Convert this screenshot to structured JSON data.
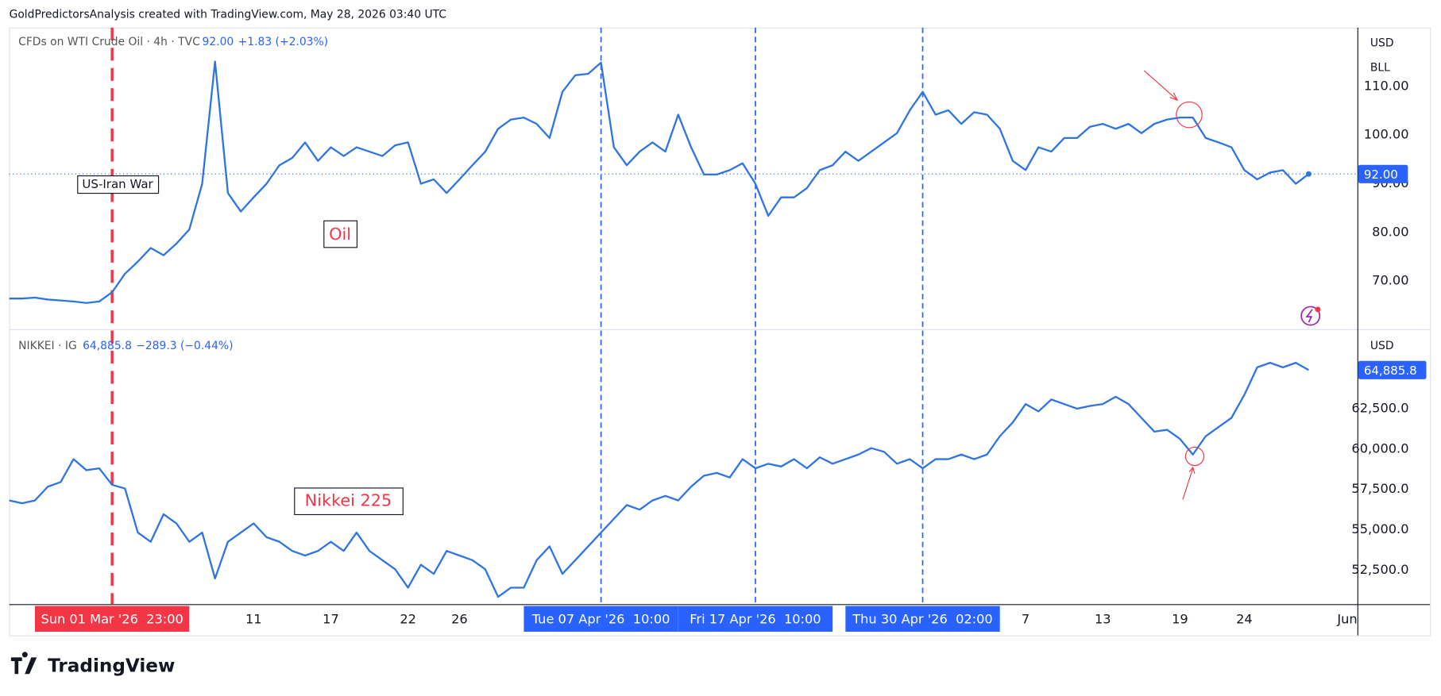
{
  "header": "GoldPredictorsAnalysis created with TradingView.com, May 28, 2026 03:40 UTC",
  "brand": "TradingView",
  "x_axis": {
    "categories": [
      null,
      null,
      null,
      null,
      null,
      null,
      null,
      null,
      "Sun 01 Mar '26  23:00",
      null,
      null,
      null,
      null,
      null,
      null,
      null,
      null,
      null,
      null,
      "11",
      null,
      null,
      null,
      null,
      null,
      "17",
      null,
      null,
      null,
      null,
      null,
      "22",
      null,
      null,
      null,
      "26",
      null,
      null,
      null,
      null,
      null,
      null,
      null,
      null,
      null,
      null,
      "Tue 07 Apr '26  10:00",
      null,
      null,
      null,
      null,
      null,
      null,
      null,
      null,
      null,
      null,
      null,
      "Fri 17 Apr '26  10:00",
      null,
      null,
      null,
      null,
      null,
      null,
      null,
      null,
      null,
      null,
      null,
      null,
      "Thu 30 Apr '26  02:00",
      null,
      null,
      null,
      null,
      null,
      null,
      null,
      "7",
      null,
      null,
      null,
      null,
      null,
      "13",
      null,
      null,
      null,
      null,
      null,
      "19",
      null,
      null,
      null,
      null,
      "24",
      null,
      null,
      null,
      null,
      null,
      null,
      null,
      "Jun"
    ],
    "markers": [
      {
        "category": "Sun 01 Mar '26  23:00",
        "color": "#f23645"
      },
      {
        "category": "Tue 07 Apr '26  10:00",
        "color": "#2962ff"
      },
      {
        "category": "Fri 17 Apr '26  10:00",
        "color": "#2962ff"
      },
      {
        "category": "Thu 30 Apr '26  02:00",
        "color": "#2962ff"
      }
    ]
  },
  "chart_data": [
    {
      "type": "line",
      "title": "CFDs on WTI Crude Oil · 4h · TVC",
      "last_label": "92.00",
      "change": "+1.83 (+2.03%)",
      "currency": "USD",
      "unit": "BLL",
      "grid": false,
      "price_line": true,
      "annotations": [
        "US-Iran War",
        "Oil"
      ],
      "series": [
        {
          "name": "CFDs on WTI Crude Oil",
          "color": "#2f75e0",
          "values": [
            66.4,
            66.4,
            66.6,
            66.2,
            66.0,
            65.8,
            65.5,
            65.8,
            67.7,
            71.5,
            74.0,
            76.8,
            75.3,
            77.7,
            80.6,
            90.0,
            115.1,
            88.1,
            84.3,
            87.2,
            90.0,
            93.8,
            95.3,
            98.5,
            94.7,
            97.5,
            95.7,
            97.5,
            96.6,
            95.7,
            97.9,
            98.5,
            90.0,
            90.9,
            88.1,
            90.9,
            93.8,
            96.6,
            101.3,
            103.2,
            103.6,
            102.3,
            99.4,
            108.9,
            112.3,
            112.6,
            114.9,
            97.5,
            93.8,
            96.6,
            98.5,
            96.6,
            104.2,
            97.5,
            91.9,
            91.9,
            92.8,
            94.2,
            90.0,
            83.4,
            87.2,
            87.2,
            89.1,
            92.8,
            93.8,
            96.6,
            94.7,
            96.6,
            98.5,
            100.4,
            105.1,
            108.9,
            104.2,
            105.1,
            102.3,
            104.7,
            104.2,
            101.3,
            94.7,
            92.8,
            97.5,
            96.6,
            99.4,
            99.4,
            101.7,
            102.3,
            101.3,
            102.3,
            100.4,
            102.3,
            103.2,
            103.6,
            103.6,
            99.4,
            98.5,
            97.5,
            92.8,
            90.9,
            92.3,
            92.8,
            90.0,
            92.0,
            null,
            null,
            null
          ]
        }
      ],
      "ylim": [
        60.2,
        122.1
      ],
      "yticks": [
        {
          "value": 70,
          "label": "70.00"
        },
        {
          "value": 80,
          "label": "80.00"
        },
        {
          "value": 90,
          "label": "90.00"
        },
        {
          "value": 100,
          "label": "100.00"
        },
        {
          "value": 110,
          "label": "110.00"
        }
      ]
    },
    {
      "type": "line",
      "title": "NIKKEI · IG",
      "last_label": "64,885.8",
      "change": "−289.3 (−0.44%)",
      "currency": "USD",
      "grid": false,
      "price_line": false,
      "annotations": [
        "Nikkei 225"
      ],
      "series": [
        {
          "name": "NIKKEI",
          "color": "#2f75e0",
          "values": [
            56817,
            56646,
            56817,
            57669,
            57953,
            59373,
            58691,
            58805,
            57782,
            57555,
            54829,
            54261,
            55965,
            55397,
            54261,
            54829,
            51989,
            54261,
            54829,
            55397,
            54545,
            54261,
            53693,
            53409,
            53693,
            54261,
            53693,
            54829,
            53693,
            53125,
            52557,
            51421,
            52841,
            52273,
            53693,
            53409,
            53125,
            52557,
            50853,
            51421,
            51421,
            53125,
            53977,
            52273,
            53125,
            53977,
            54829,
            55681,
            56533,
            56249,
            56817,
            57101,
            56817,
            57669,
            58350,
            58521,
            58237,
            59373,
            58805,
            59089,
            58918,
            59373,
            58805,
            59486,
            59089,
            59373,
            59657,
            60054,
            59827,
            59089,
            59373,
            58805,
            59373,
            59373,
            59657,
            59373,
            59657,
            60793,
            61645,
            62781,
            62326,
            63065,
            62781,
            62497,
            62667,
            62781,
            63235,
            62781,
            61929,
            61077,
            61190,
            60622,
            59657,
            60793,
            61361,
            61929,
            63349,
            65053,
            65337,
            65053,
            65337,
            64885.8,
            null,
            null,
            null
          ]
        }
      ],
      "ylim": [
        50400,
        67330
      ],
      "yticks": [
        {
          "value": 52500,
          "label": "52,500.0"
        },
        {
          "value": 55000,
          "label": "55,000.0"
        },
        {
          "value": 57500,
          "label": "57,500.0"
        },
        {
          "value": 60000,
          "label": "60,000.0"
        },
        {
          "value": 62500,
          "label": "62,500.0"
        }
      ]
    }
  ]
}
